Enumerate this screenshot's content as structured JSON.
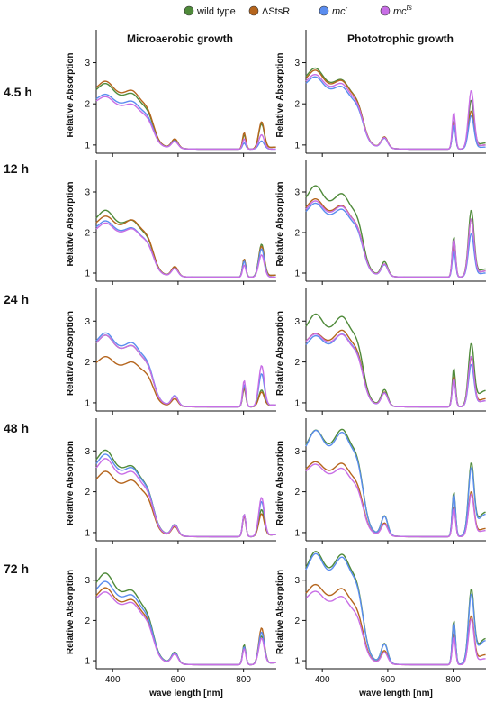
{
  "figure": {
    "column_titles": [
      "Microaerobic growth",
      "Phototrophic growth"
    ],
    "row_labels": [
      "4.5 h",
      "12 h",
      "24 h",
      "48 h",
      "72 h"
    ],
    "ylabel": "Relative Absorption",
    "xlabel": "wave length [nm]",
    "legend": [
      {
        "label": "wild type",
        "sup": "",
        "italic": false,
        "color": "#4f8a3a"
      },
      {
        "label": "ΔStsR",
        "sup": "",
        "italic": false,
        "color": "#b5651d"
      },
      {
        "label": "mc",
        "sup": "-",
        "italic": true,
        "color": "#5b8def"
      },
      {
        "label": "mc",
        "sup": "ts",
        "italic": true,
        "color": "#c86ee6"
      }
    ],
    "x_ticks": [
      400,
      600,
      800
    ],
    "y_ticks": [
      1,
      2,
      3
    ]
  },
  "chart_data": [
    {
      "type": "line",
      "row": "4.5 h",
      "column": "Microaerobic growth",
      "xlim": [
        350,
        900
      ],
      "ylim": [
        0.8,
        3.8
      ],
      "series": [
        {
          "name": "wild type",
          "color": "#4f8a3a",
          "values": {
            "start": 2.25,
            "peak": 2.4,
            "mid": 1.65,
            "p800": 1.25,
            "p860": 1.5,
            "end": 0.95
          }
        },
        {
          "name": "ΔStsR",
          "color": "#b5651d",
          "values": {
            "start": 2.3,
            "peak": 2.45,
            "mid": 1.7,
            "p800": 1.3,
            "p860": 1.55,
            "end": 0.95
          }
        },
        {
          "name": "mc-",
          "color": "#5b8def",
          "values": {
            "start": 2.05,
            "peak": 2.15,
            "mid": 1.55,
            "p800": 1.05,
            "p860": 1.1,
            "end": 0.9
          }
        },
        {
          "name": "mcts",
          "color": "#c86ee6",
          "values": {
            "start": 2.0,
            "peak": 2.1,
            "mid": 1.5,
            "p800": 1.15,
            "p860": 1.25,
            "end": 0.9
          }
        }
      ]
    },
    {
      "type": "line",
      "row": "4.5 h",
      "column": "Phototrophic growth",
      "xlim": [
        350,
        900
      ],
      "ylim": [
        0.8,
        3.8
      ],
      "series": [
        {
          "name": "wild type",
          "color": "#4f8a3a",
          "values": {
            "start": 2.55,
            "peak": 2.75,
            "mid": 1.85,
            "p800": 1.6,
            "p860": 2.05,
            "end": 1.05
          }
        },
        {
          "name": "ΔStsR",
          "color": "#b5651d",
          "values": {
            "start": 2.5,
            "peak": 2.7,
            "mid": 1.85,
            "p800": 1.55,
            "p860": 1.8,
            "end": 1.0
          }
        },
        {
          "name": "mc-",
          "color": "#5b8def",
          "values": {
            "start": 2.4,
            "peak": 2.55,
            "mid": 1.75,
            "p800": 1.5,
            "p860": 1.7,
            "end": 0.95
          }
        },
        {
          "name": "mcts",
          "color": "#c86ee6",
          "values": {
            "start": 2.45,
            "peak": 2.6,
            "mid": 1.8,
            "p800": 1.8,
            "p860": 2.3,
            "end": 1.0
          }
        }
      ]
    },
    {
      "type": "line",
      "row": "12 h",
      "column": "Microaerobic growth",
      "xlim": [
        350,
        900
      ],
      "ylim": [
        0.8,
        3.8
      ],
      "series": [
        {
          "name": "wild type",
          "color": "#4f8a3a",
          "values": {
            "start": 2.25,
            "peak": 2.45,
            "mid": 1.7,
            "p800": 1.35,
            "p860": 1.7,
            "end": 0.95
          }
        },
        {
          "name": "ΔStsR",
          "color": "#b5651d",
          "values": {
            "start": 2.15,
            "peak": 2.3,
            "mid": 1.75,
            "p800": 1.35,
            "p860": 1.65,
            "end": 0.95
          }
        },
        {
          "name": "mc-",
          "color": "#5b8def",
          "values": {
            "start": 2.05,
            "peak": 2.2,
            "mid": 1.6,
            "p800": 1.3,
            "p860": 1.6,
            "end": 0.9
          }
        },
        {
          "name": "mcts",
          "color": "#c86ee6",
          "values": {
            "start": 2.0,
            "peak": 2.15,
            "mid": 1.6,
            "p800": 1.2,
            "p860": 1.45,
            "end": 0.9
          }
        }
      ]
    },
    {
      "type": "line",
      "row": "12 h",
      "column": "Phototrophic growth",
      "xlim": [
        350,
        900
      ],
      "ylim": [
        0.8,
        3.8
      ],
      "series": [
        {
          "name": "wild type",
          "color": "#4f8a3a",
          "values": {
            "start": 2.7,
            "peak": 3.0,
            "mid": 2.15,
            "p800": 1.9,
            "p860": 2.5,
            "end": 1.1
          }
        },
        {
          "name": "ΔStsR",
          "color": "#b5651d",
          "values": {
            "start": 2.5,
            "peak": 2.7,
            "mid": 1.95,
            "p800": 1.7,
            "p860": 2.3,
            "end": 1.05
          }
        },
        {
          "name": "mc-",
          "color": "#5b8def",
          "values": {
            "start": 2.4,
            "peak": 2.6,
            "mid": 1.9,
            "p800": 1.55,
            "p860": 1.95,
            "end": 1.0
          }
        },
        {
          "name": "mcts",
          "color": "#c86ee6",
          "values": {
            "start": 2.45,
            "peak": 2.65,
            "mid": 1.95,
            "p800": 1.85,
            "p860": 2.3,
            "end": 1.05
          }
        }
      ]
    },
    {
      "type": "line",
      "row": "24 h",
      "column": "Microaerobic growth",
      "xlim": [
        350,
        900
      ],
      "ylim": [
        0.8,
        3.8
      ],
      "series": [
        {
          "name": "wild type",
          "color": "#4f8a3a",
          "values": {
            "start": 2.35,
            "peak": 2.55,
            "mid": 1.75,
            "p800": 1.4,
            "p860": 1.3,
            "end": 0.95
          }
        },
        {
          "name": "ΔStsR",
          "color": "#b5651d",
          "values": {
            "start": 1.9,
            "peak": 2.05,
            "mid": 1.55,
            "p800": 1.35,
            "p860": 1.25,
            "end": 0.95
          }
        },
        {
          "name": "mc-",
          "color": "#5b8def",
          "values": {
            "start": 2.4,
            "peak": 2.6,
            "mid": 1.8,
            "p800": 1.45,
            "p860": 1.7,
            "end": 0.95
          }
        },
        {
          "name": "mcts",
          "color": "#c86ee6",
          "values": {
            "start": 2.35,
            "peak": 2.55,
            "mid": 1.75,
            "p800": 1.55,
            "p860": 1.9,
            "end": 0.95
          }
        }
      ]
    },
    {
      "type": "line",
      "row": "24 h",
      "column": "Phototrophic growth",
      "xlim": [
        350,
        900
      ],
      "ylim": [
        0.8,
        3.8
      ],
      "series": [
        {
          "name": "wild type",
          "color": "#4f8a3a",
          "values": {
            "start": 2.7,
            "peak": 3.0,
            "mid": 2.3,
            "p800": 1.85,
            "p860": 2.35,
            "end": 1.3
          }
        },
        {
          "name": "ΔStsR",
          "color": "#b5651d",
          "values": {
            "start": 2.4,
            "peak": 2.55,
            "mid": 2.1,
            "p800": 1.65,
            "p860": 2.05,
            "end": 1.1
          }
        },
        {
          "name": "mc-",
          "color": "#5b8def",
          "values": {
            "start": 2.3,
            "peak": 2.5,
            "mid": 2.05,
            "p800": 1.6,
            "p860": 1.9,
            "end": 1.05
          }
        },
        {
          "name": "mcts",
          "color": "#c86ee6",
          "values": {
            "start": 2.4,
            "peak": 2.55,
            "mid": 2.0,
            "p800": 1.6,
            "p860": 2.1,
            "end": 1.05
          }
        }
      ]
    },
    {
      "type": "line",
      "row": "48 h",
      "column": "Microaerobic growth",
      "xlim": [
        350,
        900
      ],
      "ylim": [
        0.8,
        3.8
      ],
      "series": [
        {
          "name": "wild type",
          "color": "#4f8a3a",
          "values": {
            "start": 2.65,
            "peak": 2.9,
            "mid": 1.85,
            "p800": 1.45,
            "p860": 1.55,
            "end": 0.95
          }
        },
        {
          "name": "ΔStsR",
          "color": "#b5651d",
          "values": {
            "start": 2.2,
            "peak": 2.4,
            "mid": 1.7,
            "p800": 1.4,
            "p860": 1.45,
            "end": 0.95
          }
        },
        {
          "name": "mc-",
          "color": "#5b8def",
          "values": {
            "start": 2.55,
            "peak": 2.8,
            "mid": 1.85,
            "p800": 1.45,
            "p860": 1.75,
            "end": 0.95
          }
        },
        {
          "name": "mcts",
          "color": "#c86ee6",
          "values": {
            "start": 2.45,
            "peak": 2.7,
            "mid": 1.8,
            "p800": 1.45,
            "p860": 1.85,
            "end": 0.95
          }
        }
      ]
    },
    {
      "type": "line",
      "row": "48 h",
      "column": "Phototrophic growth",
      "xlim": [
        350,
        900
      ],
      "ylim": [
        0.8,
        3.8
      ],
      "series": [
        {
          "name": "wild type",
          "color": "#4f8a3a",
          "values": {
            "start": 2.95,
            "peak": 3.3,
            "mid": 2.6,
            "p800": 2.0,
            "p860": 2.55,
            "end": 1.5
          }
        },
        {
          "name": "ΔStsR",
          "color": "#b5651d",
          "values": {
            "start": 2.45,
            "peak": 2.6,
            "mid": 2.0,
            "p800": 1.65,
            "p860": 1.95,
            "end": 1.1
          }
        },
        {
          "name": "mc-",
          "color": "#5b8def",
          "values": {
            "start": 2.9,
            "peak": 3.3,
            "mid": 2.55,
            "p800": 1.95,
            "p860": 2.45,
            "end": 1.45
          }
        },
        {
          "name": "mcts",
          "color": "#c86ee6",
          "values": {
            "start": 2.4,
            "peak": 2.55,
            "mid": 1.9,
            "p800": 1.6,
            "p860": 1.9,
            "end": 1.05
          }
        }
      ]
    },
    {
      "type": "line",
      "row": "72 h",
      "column": "Microaerobic growth",
      "xlim": [
        350,
        900
      ],
      "ylim": [
        0.8,
        3.8
      ],
      "series": [
        {
          "name": "wild type",
          "color": "#4f8a3a",
          "values": {
            "start": 2.8,
            "peak": 3.05,
            "mid": 1.9,
            "p800": 1.4,
            "p860": 1.6,
            "end": 0.95
          }
        },
        {
          "name": "ΔStsR",
          "color": "#b5651d",
          "values": {
            "start": 2.5,
            "peak": 2.7,
            "mid": 1.8,
            "p800": 1.35,
            "p860": 1.8,
            "end": 0.95
          }
        },
        {
          "name": "mc-",
          "color": "#5b8def",
          "values": {
            "start": 2.65,
            "peak": 2.85,
            "mid": 1.85,
            "p800": 1.35,
            "p860": 1.7,
            "end": 0.95
          }
        },
        {
          "name": "mcts",
          "color": "#c86ee6",
          "values": {
            "start": 2.45,
            "peak": 2.6,
            "mid": 1.75,
            "p800": 1.3,
            "p860": 1.55,
            "end": 0.95
          }
        }
      ]
    },
    {
      "type": "line",
      "row": "72 h",
      "column": "Phototrophic growth",
      "xlim": [
        350,
        900
      ],
      "ylim": [
        0.8,
        3.8
      ],
      "series": [
        {
          "name": "wild type",
          "color": "#4f8a3a",
          "values": {
            "start": 3.1,
            "peak": 3.5,
            "mid": 2.65,
            "p800": 2.0,
            "p860": 2.6,
            "end": 1.55
          }
        },
        {
          "name": "ΔStsR",
          "color": "#b5651d",
          "values": {
            "start": 2.55,
            "peak": 2.75,
            "mid": 2.05,
            "p800": 1.7,
            "p860": 2.05,
            "end": 1.15
          }
        },
        {
          "name": "mc-",
          "color": "#5b8def",
          "values": {
            "start": 3.05,
            "peak": 3.45,
            "mid": 2.6,
            "p800": 1.95,
            "p860": 2.5,
            "end": 1.5
          }
        },
        {
          "name": "mcts",
          "color": "#c86ee6",
          "values": {
            "start": 2.45,
            "peak": 2.6,
            "mid": 1.9,
            "p800": 1.6,
            "p860": 2.0,
            "end": 1.05
          }
        }
      ]
    }
  ]
}
